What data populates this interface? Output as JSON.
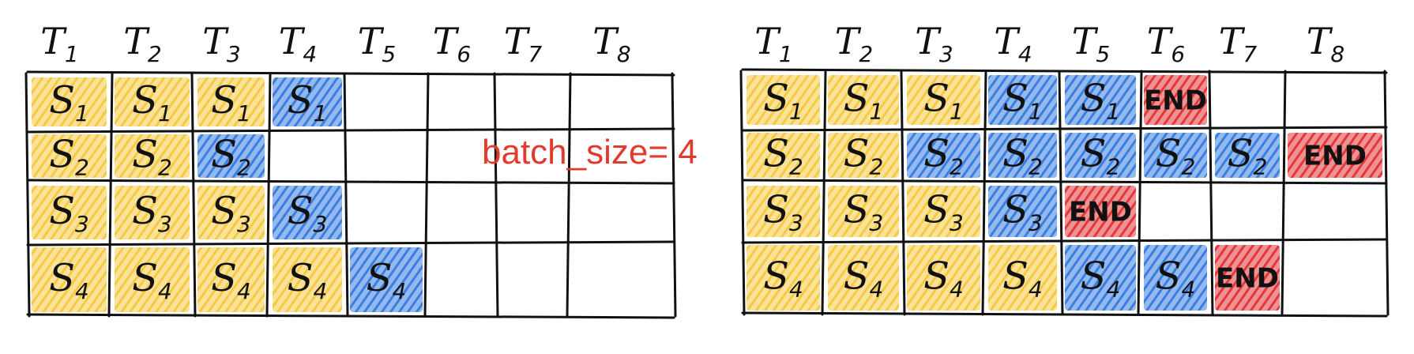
{
  "colors": {
    "prefill": "#f6c945",
    "generate": "#3a7fe0",
    "end": "#e2383a",
    "label": "#e23b2e"
  },
  "batch_label": "batch_size= 4",
  "time_steps": [
    "T1",
    "T2",
    "T3",
    "T4",
    "T5",
    "T6",
    "T7",
    "T8"
  ],
  "panels": [
    {
      "name": "static-batching",
      "rows": [
        [
          {
            "text": "S1",
            "kind": "prefill"
          },
          {
            "text": "S1",
            "kind": "prefill"
          },
          {
            "text": "S1",
            "kind": "prefill"
          },
          {
            "text": "S1",
            "kind": "generate"
          },
          {
            "text": "",
            "kind": "empty"
          },
          {
            "text": "",
            "kind": "empty"
          },
          {
            "text": "",
            "kind": "empty"
          },
          {
            "text": "",
            "kind": "empty"
          }
        ],
        [
          {
            "text": "S2",
            "kind": "prefill"
          },
          {
            "text": "S2",
            "kind": "prefill"
          },
          {
            "text": "S2",
            "kind": "generate"
          },
          {
            "text": "",
            "kind": "empty"
          },
          {
            "text": "",
            "kind": "empty"
          },
          {
            "text": "",
            "kind": "empty"
          },
          {
            "text": "",
            "kind": "empty"
          },
          {
            "text": "",
            "kind": "empty"
          }
        ],
        [
          {
            "text": "S3",
            "kind": "prefill"
          },
          {
            "text": "S3",
            "kind": "prefill"
          },
          {
            "text": "S3",
            "kind": "prefill"
          },
          {
            "text": "S3",
            "kind": "generate"
          },
          {
            "text": "",
            "kind": "empty"
          },
          {
            "text": "",
            "kind": "empty"
          },
          {
            "text": "",
            "kind": "empty"
          },
          {
            "text": "",
            "kind": "empty"
          }
        ],
        [
          {
            "text": "S4",
            "kind": "prefill"
          },
          {
            "text": "S4",
            "kind": "prefill"
          },
          {
            "text": "S4",
            "kind": "prefill"
          },
          {
            "text": "S4",
            "kind": "prefill"
          },
          {
            "text": "S4",
            "kind": "generate"
          },
          {
            "text": "",
            "kind": "empty"
          },
          {
            "text": "",
            "kind": "empty"
          },
          {
            "text": "",
            "kind": "empty"
          }
        ]
      ]
    },
    {
      "name": "batch-with-end",
      "rows": [
        [
          {
            "text": "S1",
            "kind": "prefill"
          },
          {
            "text": "S1",
            "kind": "prefill"
          },
          {
            "text": "S1",
            "kind": "prefill"
          },
          {
            "text": "S1",
            "kind": "generate"
          },
          {
            "text": "S1",
            "kind": "generate"
          },
          {
            "text": "END",
            "kind": "end"
          },
          {
            "text": "",
            "kind": "empty"
          },
          {
            "text": "",
            "kind": "empty"
          }
        ],
        [
          {
            "text": "S2",
            "kind": "prefill"
          },
          {
            "text": "S2",
            "kind": "prefill"
          },
          {
            "text": "S2",
            "kind": "generate"
          },
          {
            "text": "S2",
            "kind": "generate"
          },
          {
            "text": "S2",
            "kind": "generate"
          },
          {
            "text": "S2",
            "kind": "generate"
          },
          {
            "text": "S2",
            "kind": "generate"
          },
          {
            "text": "END",
            "kind": "end"
          }
        ],
        [
          {
            "text": "S3",
            "kind": "prefill"
          },
          {
            "text": "S3",
            "kind": "prefill"
          },
          {
            "text": "S3",
            "kind": "prefill"
          },
          {
            "text": "S3",
            "kind": "generate"
          },
          {
            "text": "END",
            "kind": "end"
          },
          {
            "text": "",
            "kind": "empty"
          },
          {
            "text": "",
            "kind": "empty"
          },
          {
            "text": "",
            "kind": "empty"
          }
        ],
        [
          {
            "text": "S4",
            "kind": "prefill"
          },
          {
            "text": "S4",
            "kind": "prefill"
          },
          {
            "text": "S4",
            "kind": "prefill"
          },
          {
            "text": "S4",
            "kind": "prefill"
          },
          {
            "text": "S4",
            "kind": "generate"
          },
          {
            "text": "S4",
            "kind": "generate"
          },
          {
            "text": "END",
            "kind": "end"
          },
          {
            "text": "",
            "kind": "empty"
          }
        ]
      ]
    }
  ]
}
